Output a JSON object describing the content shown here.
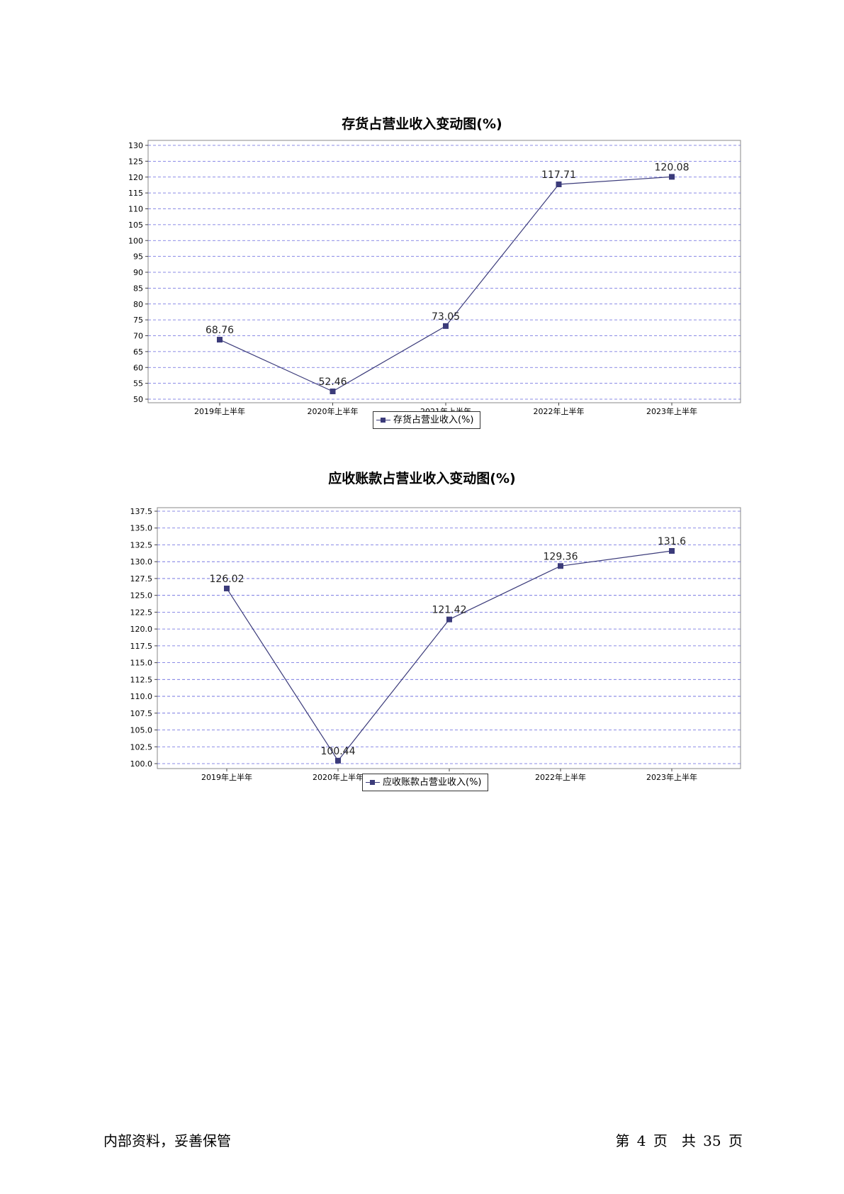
{
  "charts": [
    {
      "title": "存货占营业收入变动图(%)",
      "legend_label": "存货占营业收入(%)"
    },
    {
      "title": "应收账款占营业收入变动图(%)",
      "legend_label": "应收账款占营业收入(%)"
    }
  ],
  "footer": {
    "left": "内部资料，妥善保管",
    "right": "第 4 页　共 35 页"
  },
  "colors": {
    "series": "#3b3b7a",
    "grid": "#6666dd",
    "frame": "#888888"
  },
  "chart_data": [
    {
      "type": "line",
      "title": "存货占营业收入变动图(%)",
      "categories": [
        "2019年上半年",
        "2020年上半年",
        "2021年上半年",
        "2022年上半年",
        "2023年上半年"
      ],
      "series": [
        {
          "name": "存货占营业收入(%)",
          "values": [
            68.76,
            52.46,
            73.05,
            117.71,
            120.08
          ]
        }
      ],
      "ylim": [
        50,
        130
      ],
      "yticks": [
        50,
        55,
        60,
        65,
        70,
        75,
        80,
        85,
        90,
        95,
        100,
        105,
        110,
        115,
        120,
        125,
        130
      ],
      "ytick_decimals": 0,
      "grid": true,
      "legend_position": "bottom-center",
      "data_labels": [
        "68.76",
        "52.46",
        "73.05",
        "117.71",
        "120.08"
      ]
    },
    {
      "type": "line",
      "title": "应收账款占营业收入变动图(%)",
      "categories": [
        "2019年上半年",
        "2020年上半年",
        "2021年上半年",
        "2022年上半年",
        "2023年上半年"
      ],
      "series": [
        {
          "name": "应收账款占营业收入(%)",
          "values": [
            126.02,
            100.44,
            121.42,
            129.36,
            131.6
          ]
        }
      ],
      "ylim": [
        100,
        137.5
      ],
      "yticks": [
        100.0,
        102.5,
        105.0,
        107.5,
        110.0,
        112.5,
        115.0,
        117.5,
        120.0,
        122.5,
        125.0,
        127.5,
        130.0,
        132.5,
        135.0,
        137.5
      ],
      "ytick_decimals": 1,
      "grid": true,
      "legend_position": "bottom-center",
      "data_labels": [
        "126.02",
        "100.44",
        "121.42",
        "129.36",
        "131.6"
      ]
    }
  ]
}
